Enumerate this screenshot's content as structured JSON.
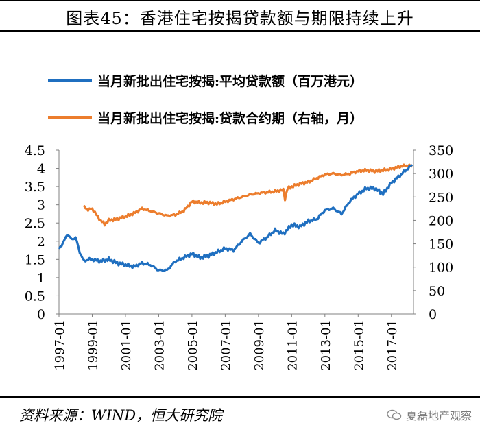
{
  "figure": {
    "title": "图表45：香港住宅按揭贷款额与期限持续上升",
    "source": "资料来源：WIND，恒大研究院",
    "watermark": "夏磊地产观察",
    "watermark_icon": "wechat-icon"
  },
  "colors": {
    "series_blue": "#1f6fc0",
    "series_orange": "#ec7d2d",
    "axis": "#808080"
  },
  "chart_data": {
    "type": "line",
    "legend_position": "top",
    "grid": false,
    "xlabel": "",
    "ylabel_left": "",
    "ylabel_right": "",
    "x_range": [
      1997.0,
      2018.33
    ],
    "x_tick_labels": [
      "1997-01",
      "1999-01",
      "2001-01",
      "2003-01",
      "2005-01",
      "2007-01",
      "2009-01",
      "2011-01",
      "2013-01",
      "2015-01",
      "2017-01"
    ],
    "x_tick_values": [
      1997,
      1999,
      2001,
      2003,
      2005,
      2007,
      2009,
      2011,
      2013,
      2015,
      2017
    ],
    "y_left": {
      "range": [
        0,
        4.5
      ],
      "ticks": [
        0,
        0.5,
        1,
        1.5,
        2,
        2.5,
        3,
        3.5,
        4,
        4.5
      ],
      "tick_labels": [
        "0",
        "0.5",
        "1",
        "1.5",
        "2",
        "2.5",
        "3",
        "3.5",
        "4",
        "4.5"
      ]
    },
    "y_right": {
      "range": [
        0,
        350
      ],
      "ticks": [
        0,
        50,
        100,
        150,
        200,
        250,
        300,
        350
      ],
      "tick_labels": [
        "0",
        "50",
        "100",
        "150",
        "200",
        "250",
        "300",
        "350"
      ]
    },
    "series": [
      {
        "name": "当月新批出住宅按揭:平均贷款额（百万港元）",
        "axis": "left",
        "color": "#1f6fc0",
        "x": [
          1997.0,
          1997.25,
          1997.5,
          1997.75,
          1998.0,
          1998.25,
          1998.5,
          1998.75,
          1999.0,
          1999.5,
          2000.0,
          2000.5,
          2001.0,
          2001.5,
          2002.0,
          2002.5,
          2003.0,
          2003.5,
          2004.0,
          2004.5,
          2005.0,
          2005.5,
          2006.0,
          2006.5,
          2007.0,
          2007.5,
          2008.0,
          2008.5,
          2009.0,
          2009.5,
          2010.0,
          2010.5,
          2011.0,
          2011.5,
          2012.0,
          2012.5,
          2013.0,
          2013.5,
          2014.0,
          2014.5,
          2015.0,
          2015.5,
          2016.0,
          2016.5,
          2017.0,
          2017.5,
          2018.0,
          2018.25
        ],
        "values": [
          1.8,
          1.95,
          2.2,
          2.05,
          2.1,
          1.7,
          1.45,
          1.5,
          1.5,
          1.45,
          1.5,
          1.4,
          1.35,
          1.3,
          1.4,
          1.35,
          1.2,
          1.2,
          1.45,
          1.55,
          1.65,
          1.55,
          1.6,
          1.7,
          1.8,
          1.75,
          2.0,
          2.2,
          1.95,
          2.1,
          2.3,
          2.2,
          2.45,
          2.4,
          2.55,
          2.6,
          2.85,
          2.9,
          2.75,
          3.1,
          3.3,
          3.45,
          3.45,
          3.3,
          3.6,
          3.8,
          4.0,
          4.1
        ]
      },
      {
        "name": "当月新批出住宅按揭:贷款合约期（右轴，月）",
        "axis": "right",
        "color": "#ec7d2d",
        "x": [
          1998.5,
          1998.75,
          1999.0,
          1999.25,
          1999.5,
          1999.75,
          2000.0,
          2000.5,
          2001.0,
          2001.5,
          2002.0,
          2002.5,
          2003.0,
          2003.5,
          2004.0,
          2004.5,
          2005.0,
          2005.5,
          2006.0,
          2006.5,
          2007.0,
          2007.5,
          2008.0,
          2008.5,
          2009.0,
          2009.5,
          2010.0,
          2010.5,
          2010.6,
          2010.75,
          2011.0,
          2011.5,
          2012.0,
          2012.5,
          2013.0,
          2013.5,
          2014.0,
          2014.5,
          2015.0,
          2015.5,
          2016.0,
          2016.5,
          2017.0,
          2017.5,
          2018.0,
          2018.25
        ],
        "values": [
          230,
          222,
          225,
          212,
          200,
          192,
          200,
          203,
          208,
          215,
          225,
          220,
          215,
          210,
          212,
          220,
          240,
          238,
          238,
          235,
          240,
          245,
          250,
          255,
          258,
          260,
          262,
          265,
          245,
          268,
          272,
          278,
          282,
          290,
          298,
          300,
          297,
          300,
          305,
          307,
          305,
          307,
          310,
          315,
          318,
          315
        ]
      }
    ]
  }
}
